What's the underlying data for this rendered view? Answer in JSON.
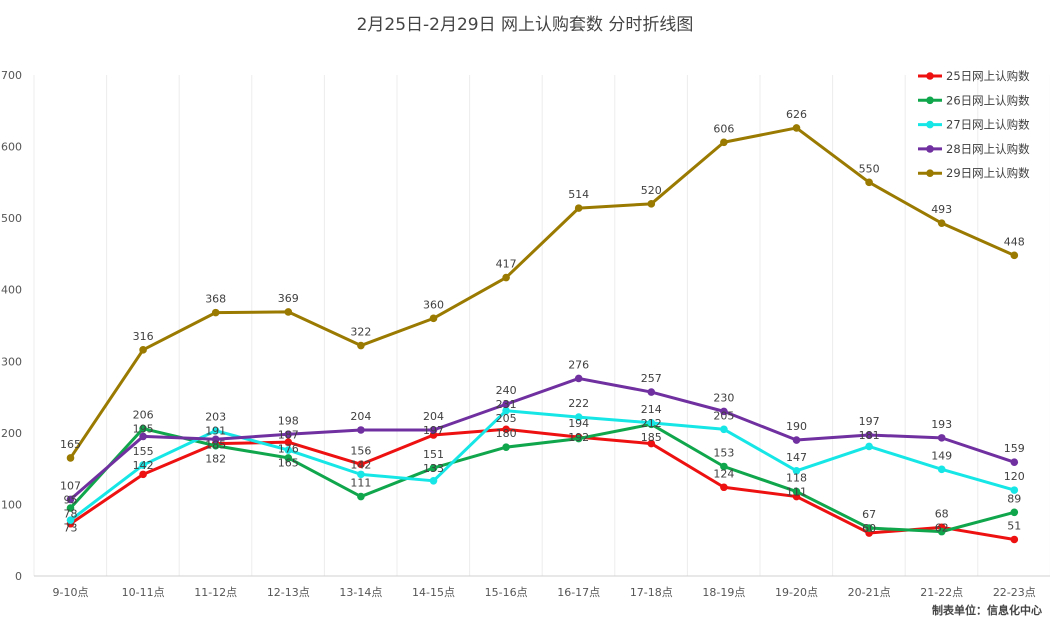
{
  "chart_data": {
    "type": "line",
    "title": "2月25日-2月29日 网上认购套数 分时折线图",
    "xlabel": "",
    "ylabel": "",
    "ylim": [
      0,
      700
    ],
    "yticks": [
      0,
      100,
      200,
      300,
      400,
      500,
      600,
      700
    ],
    "grid": "vertical",
    "legend": "top-right",
    "categories": [
      "9-10点",
      "10-11点",
      "11-12点",
      "12-13点",
      "13-14点",
      "14-15点",
      "15-16点",
      "16-17点",
      "17-18点",
      "18-19点",
      "19-20点",
      "20-21点",
      "21-22点",
      "22-23点"
    ],
    "series": [
      {
        "name": "25日网上认购数",
        "color": "#ee1111",
        "values": [
          73,
          142,
          185,
          187,
          156,
          197,
          205,
          194,
          185,
          124,
          111,
          60,
          68,
          51
        ]
      },
      {
        "name": "26日网上认购数",
        "color": "#10a64c",
        "values": [
          95,
          206,
          182,
          165,
          111,
          151,
          180,
          192,
          212,
          153,
          118,
          67,
          62,
          89
        ]
      },
      {
        "name": "27日网上认购数",
        "color": "#16e6e6",
        "values": [
          78,
          155,
          203,
          176,
          142,
          133,
          231,
          222,
          214,
          205,
          147,
          181,
          149,
          120
        ]
      },
      {
        "name": "28日网上认购数",
        "color": "#7030a0",
        "values": [
          107,
          195,
          191,
          198,
          204,
          204,
          240,
          276,
          257,
          230,
          190,
          197,
          193,
          159
        ]
      },
      {
        "name": "29日网上认购数",
        "color": "#9a7a00",
        "values": [
          165,
          316,
          368,
          369,
          322,
          360,
          417,
          514,
          520,
          606,
          626,
          550,
          493,
          448
        ]
      }
    ]
  },
  "footer": "制表单位：信息化中心"
}
